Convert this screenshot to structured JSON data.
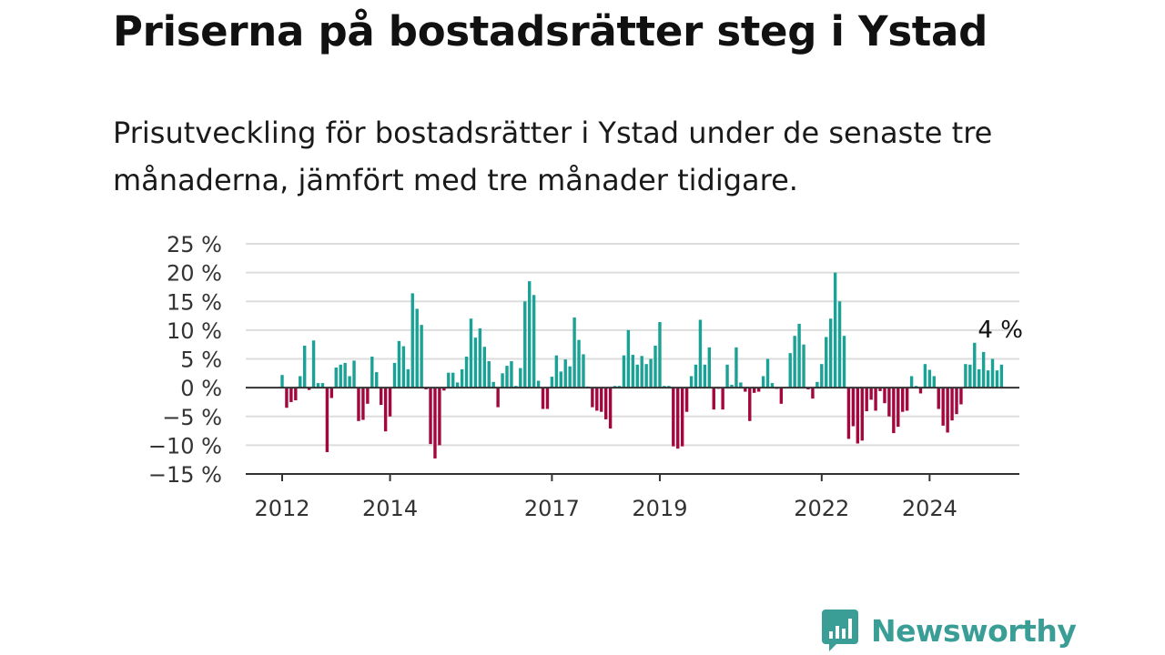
{
  "title": "Priserna på bostadsrätter steg i Ystad",
  "subtitle": "Prisutveckling för bostadsrätter i Ystad under de senaste tre månaderna, jämfört med tre månader tidigare.",
  "brand": {
    "name": "Newsworthy",
    "icon": "newsworthy-logo-icon",
    "color": "#3a9e96"
  },
  "chart_data": {
    "type": "bar",
    "x_start": "2012-01",
    "x_end": "2025-06",
    "ylim": [
      -15,
      25
    ],
    "y_ticks": [
      25,
      20,
      15,
      10,
      5,
      0,
      -5,
      -10,
      -15
    ],
    "y_tick_labels": [
      "25 %",
      "20 %",
      "15 %",
      "10 %",
      "5 %",
      "0 %",
      "−5 %",
      "−10 %",
      "−15 %"
    ],
    "x_ticks": [
      {
        "date": "2012-01",
        "label": "2012"
      },
      {
        "date": "2014-01",
        "label": "2014"
      },
      {
        "date": "2017-01",
        "label": "2017"
      },
      {
        "date": "2019-01",
        "label": "2019"
      },
      {
        "date": "2022-01",
        "label": "2022"
      },
      {
        "date": "2024-01",
        "label": "2024"
      }
    ],
    "grid": true,
    "colors": {
      "positive": "#1aa296",
      "negative": "#a3073e",
      "zero_line": "#333333",
      "grid": "#dddddd"
    },
    "annotation": {
      "label": "4 %",
      "date": "2025-05",
      "value": 4
    },
    "series": [
      {
        "start": "2012-01",
        "values": [
          2.2,
          -3.5,
          -2.5,
          -2.2,
          2,
          7.3,
          -0.4,
          8.2,
          0.8,
          0.8,
          -11.2,
          -1.8,
          3.5,
          4,
          4.3,
          2,
          4.7,
          -5.8,
          -5.6,
          -2.8,
          5.4,
          2.7,
          -3,
          -7.6,
          -5,
          4.3,
          8.1,
          7.2,
          3.2,
          16.4,
          13.7,
          10.9,
          -0.3,
          -9.8,
          -12.3,
          -10,
          -0.5,
          2.6,
          2.6,
          0.9,
          3.2,
          5.4,
          12,
          8.7,
          10.3,
          7.1,
          4.6,
          1,
          -3.4,
          2.5,
          3.8,
          4.6,
          0.3,
          3.4,
          15,
          18.5,
          16.1,
          1.2,
          -3.7,
          -3.7,
          1.9,
          5.6,
          2.8,
          4.9,
          3.7,
          12.2,
          8.3,
          5.8,
          0.2,
          -3.4,
          -4,
          -4.2,
          -5.5,
          -7.1,
          0.3,
          0.3,
          5.6,
          10,
          5.7,
          4,
          5.5,
          4.1,
          5,
          7.3,
          11.4,
          0.3,
          0.3,
          -10.2,
          -10.6,
          -10.2,
          -4.2,
          2,
          4,
          11.8,
          4,
          7,
          -3.8,
          -0.2,
          -3.8,
          4,
          0.5,
          7,
          0.9,
          -0.7,
          -5.8,
          -0.9,
          -0.7,
          2,
          5,
          0.8,
          -0.2,
          -2.8,
          0.1,
          6,
          9,
          11.1,
          7.5,
          -0.3,
          -1.9,
          1,
          4.1,
          8.8,
          12,
          20,
          15,
          9,
          -8.9,
          -6.7,
          -9.7,
          -9.2,
          -4.1,
          -2.1,
          -4,
          -0.6,
          -2.7,
          -5,
          -7.9,
          -6.8,
          -4.2,
          -4,
          2,
          0.3,
          -1,
          4.1,
          3.1,
          2,
          -3.7,
          -6.6,
          -7.8,
          -5.7,
          -4.6,
          -2.9,
          4.1,
          4,
          7.8,
          3.2,
          6.2,
          3,
          5,
          3,
          4
        ]
      }
    ]
  }
}
